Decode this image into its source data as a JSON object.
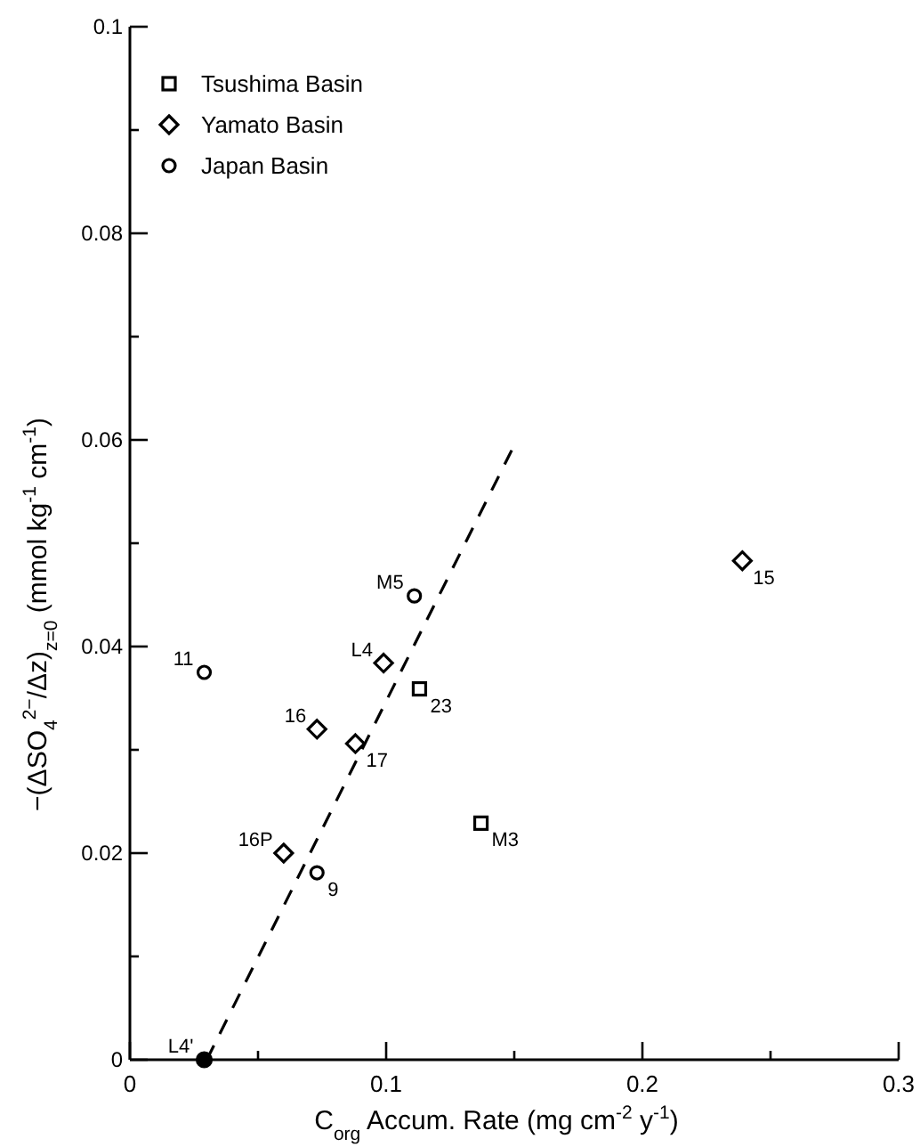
{
  "chart_data": {
    "type": "scatter",
    "xlabel": "C$_{org}$ Accum. Rate (mg cm$^{-2}$ y$^{-1}$)",
    "ylabel": "−(ΔSO$_{4}$$^{2−}$/Δz)$_{z=0}$  (mmol kg$^{-1}$ cm$^{-1}$)",
    "xlim": [
      0,
      0.3
    ],
    "ylim": [
      0,
      0.1
    ],
    "xticks": [
      0,
      {
        "value": 0.05,
        "label": null
      },
      0.1,
      {
        "value": 0.15,
        "label": null
      },
      0.2,
      {
        "value": 0.25,
        "label": null
      },
      0.3
    ],
    "yticks": [
      0,
      {
        "value": 0.01,
        "label": null
      },
      0.02,
      {
        "value": 0.03,
        "label": null
      },
      0.04,
      {
        "value": 0.05,
        "label": null
      },
      0.06,
      {
        "value": 0.07,
        "label": null
      },
      0.08,
      {
        "value": 0.09,
        "label": null
      },
      0.1
    ],
    "grid": false,
    "legend": "top left",
    "series": [
      {
        "name": "Tsushima Basin",
        "color": "#000000",
        "marker": "square",
        "x": [
          0.113,
          0.137
        ],
        "values": [
          0.0359,
          0.0229
        ]
      },
      {
        "name": "Yamato Basin",
        "color": "#000000",
        "marker": "diamond",
        "x": [
          0.099,
          0.073,
          0.088,
          0.06,
          0.239
        ],
        "values": [
          0.0384,
          0.032,
          0.0306,
          0.02,
          0.0483
        ]
      },
      {
        "name": "Japan Basin",
        "color": "#000000",
        "marker": "circle",
        "x": [
          0.111,
          0.029,
          0.073
        ],
        "values": [
          0.0449,
          0.0375,
          0.0181
        ]
      },
      {
        "color": "#000000",
        "marker": "circle",
        "x": [
          0.029
        ],
        "values": [
          0
        ]
      },
      {
        "type": "line",
        "color": "#000000",
        "line_style": "dashed",
        "marker": "none",
        "x": [
          0.03,
          0.149
        ],
        "values": [
          0,
          0.059
        ]
      }
    ],
    "annotations": [
      {
        "text": "23",
        "x": 0.113,
        "y": 0.0359
      },
      {
        "text": "M3",
        "x": 0.137,
        "y": 0.0229
      },
      {
        "text": "L4",
        "x": 0.099,
        "y": 0.0384
      },
      {
        "text": "16",
        "x": 0.073,
        "y": 0.032
      },
      {
        "text": "17",
        "x": 0.088,
        "y": 0.0306
      },
      {
        "text": "16P",
        "x": 0.06,
        "y": 0.02
      },
      {
        "text": "15",
        "x": 0.239,
        "y": 0.0483
      },
      {
        "text": "M5",
        "x": 0.111,
        "y": 0.0449
      },
      {
        "text": "11",
        "x": 0.029,
        "y": 0.0375
      },
      {
        "text": "9",
        "x": 0.073,
        "y": 0.0181
      },
      {
        "text": "L4'",
        "x": 0.029,
        "y": 0
      }
    ]
  }
}
